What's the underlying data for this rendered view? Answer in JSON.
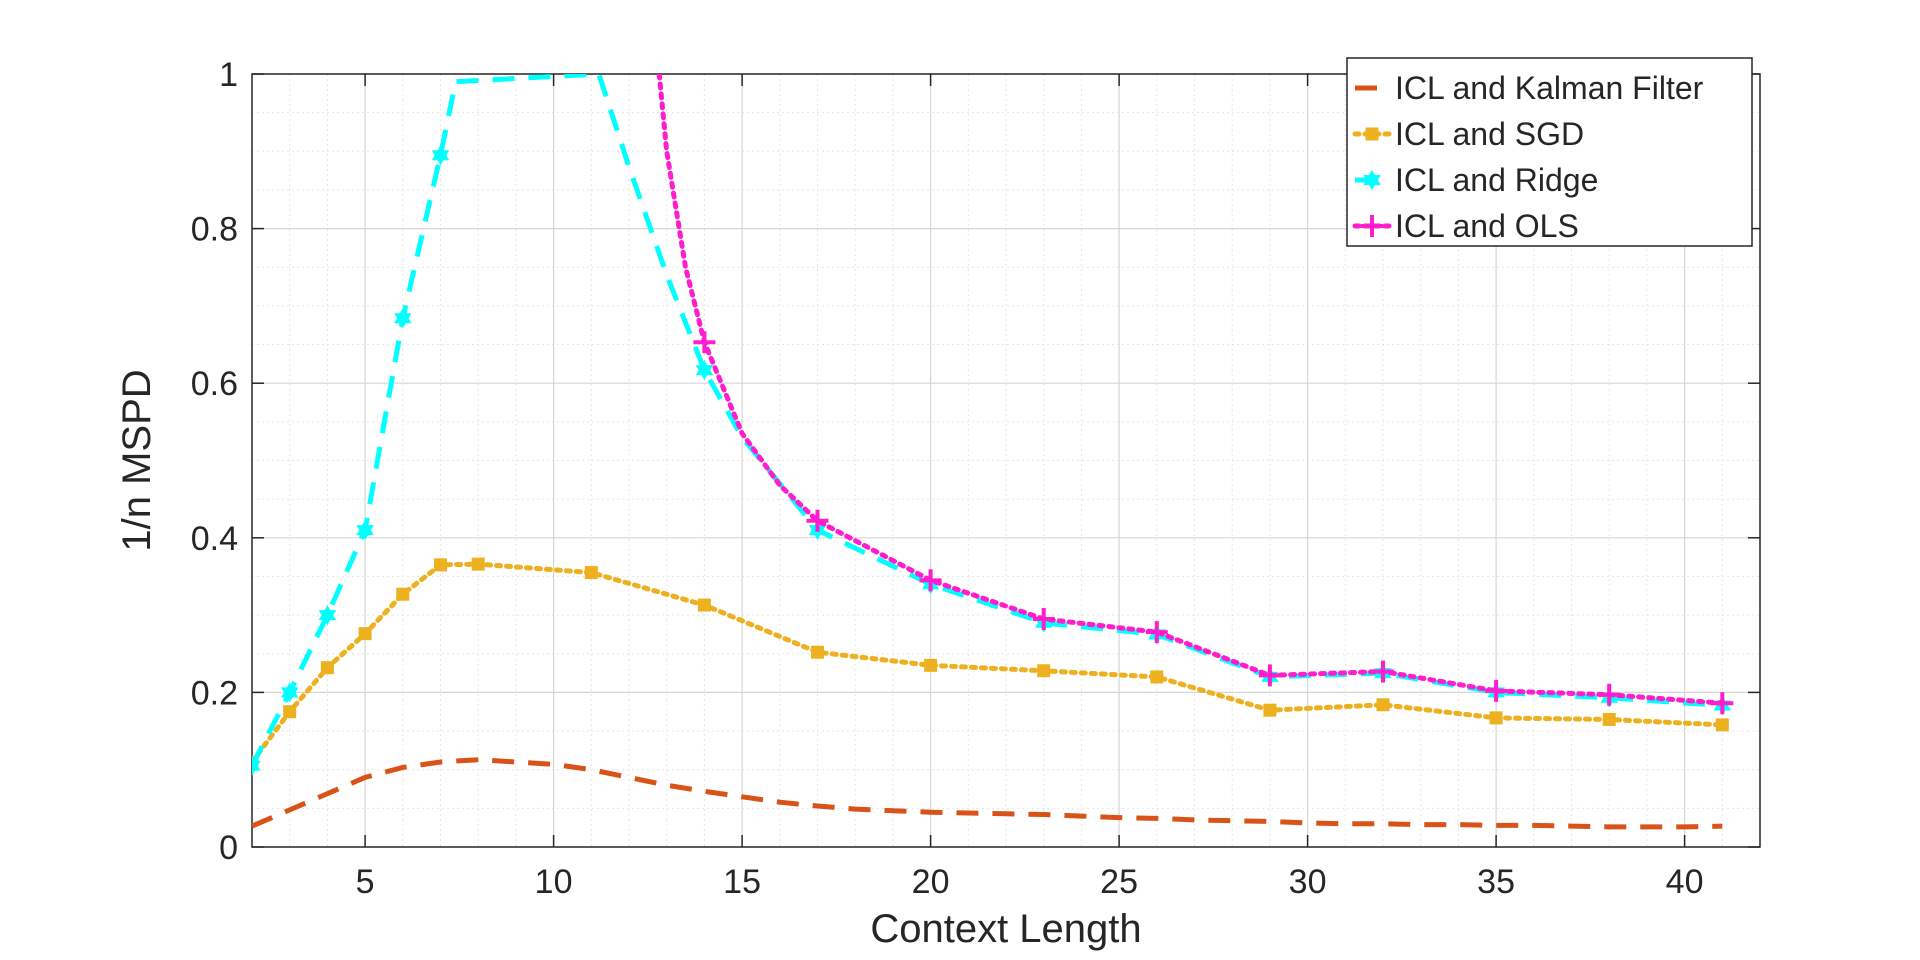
{
  "chart_data": {
    "type": "line",
    "title": "",
    "xlabel": "Context Length",
    "ylabel": "1/n MSPD",
    "xlim": [
      2,
      42
    ],
    "ylim": [
      0,
      1
    ],
    "xticks": [
      5,
      10,
      15,
      20,
      25,
      30,
      35,
      40
    ],
    "yticks": [
      0,
      0.2,
      0.4,
      0.6,
      0.8,
      1
    ],
    "ytick_labels": [
      "0",
      "0.2",
      "0.4",
      "0.6",
      "0.8",
      "1"
    ],
    "grid": true,
    "minor_grid": true,
    "legend_position": "top-right",
    "series": [
      {
        "name": "ICL and Kalman Filter",
        "color": "#D95319",
        "style": "dashed",
        "marker": "none",
        "x": [
          2,
          5,
          6,
          7,
          8,
          9,
          10,
          11,
          12,
          13,
          14,
          15,
          16,
          17,
          18,
          19,
          20,
          21,
          22,
          23,
          24,
          25,
          26,
          27,
          28,
          29,
          30,
          31,
          32,
          33,
          34,
          35,
          36,
          37,
          38,
          39,
          40,
          41
        ],
        "values": [
          0.027,
          0.09,
          0.103,
          0.11,
          0.113,
          0.11,
          0.107,
          0.1,
          0.09,
          0.08,
          0.072,
          0.065,
          0.058,
          0.053,
          0.049,
          0.047,
          0.045,
          0.044,
          0.043,
          0.042,
          0.04,
          0.038,
          0.037,
          0.035,
          0.034,
          0.033,
          0.031,
          0.03,
          0.03,
          0.029,
          0.029,
          0.028,
          0.028,
          0.027,
          0.026,
          0.026,
          0.026,
          0.027
        ]
      },
      {
        "name": "ICL and SGD",
        "color": "#EDB120",
        "style": "dotted",
        "marker": "square",
        "x": [
          2,
          3,
          4,
          5,
          6,
          7,
          8,
          11,
          14,
          17,
          20,
          23,
          26,
          29,
          32,
          35,
          38,
          41
        ],
        "values": [
          0.11,
          0.175,
          0.232,
          0.276,
          0.327,
          0.365,
          0.366,
          0.355,
          0.313,
          0.252,
          0.235,
          0.228,
          0.22,
          0.177,
          0.184,
          0.167,
          0.165,
          0.158
        ]
      },
      {
        "name": "ICL and Ridge",
        "color": "#00FFFF",
        "style": "dashed",
        "marker": "hexagram",
        "marker_x": [
          2,
          3,
          4,
          5,
          6,
          7,
          14,
          17,
          20,
          23,
          26,
          29,
          32,
          35,
          38,
          41
        ],
        "x": [
          2,
          3,
          4,
          5,
          6,
          7,
          7.4,
          11.2,
          12,
          13,
          14,
          15,
          17,
          20,
          23,
          26,
          29,
          32,
          35,
          38,
          41
        ],
        "values": [
          0.105,
          0.2,
          0.3,
          0.41,
          0.684,
          0.895,
          0.99,
          1.0,
          0.88,
          0.74,
          0.617,
          0.53,
          0.41,
          0.34,
          0.29,
          0.275,
          0.22,
          0.225,
          0.2,
          0.193,
          0.183
        ]
      },
      {
        "name": "ICL and OLS",
        "color": "#FF1DCE",
        "style": "dotted",
        "marker": "plus",
        "marker_x": [
          14,
          17,
          20,
          23,
          26,
          29,
          32,
          35,
          38,
          41
        ],
        "x": [
          12.8,
          13,
          13.5,
          14,
          15,
          16,
          17,
          20,
          23,
          26,
          29,
          32,
          35,
          38,
          41
        ],
        "values": [
          1.0,
          0.9,
          0.75,
          0.653,
          0.535,
          0.468,
          0.422,
          0.345,
          0.295,
          0.278,
          0.222,
          0.227,
          0.202,
          0.197,
          0.186
        ]
      }
    ]
  }
}
